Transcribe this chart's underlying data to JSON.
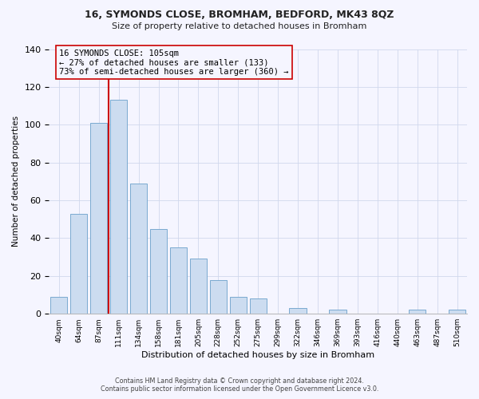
{
  "title": "16, SYMONDS CLOSE, BROMHAM, BEDFORD, MK43 8QZ",
  "subtitle": "Size of property relative to detached houses in Bromham",
  "xlabel": "Distribution of detached houses by size in Bromham",
  "ylabel": "Number of detached properties",
  "bar_labels": [
    "40sqm",
    "64sqm",
    "87sqm",
    "111sqm",
    "134sqm",
    "158sqm",
    "181sqm",
    "205sqm",
    "228sqm",
    "252sqm",
    "275sqm",
    "299sqm",
    "322sqm",
    "346sqm",
    "369sqm",
    "393sqm",
    "416sqm",
    "440sqm",
    "463sqm",
    "487sqm",
    "510sqm"
  ],
  "bar_values": [
    9,
    53,
    101,
    113,
    69,
    45,
    35,
    29,
    18,
    9,
    8,
    0,
    3,
    0,
    2,
    0,
    0,
    0,
    2,
    0,
    2
  ],
  "bar_color": "#ccdcf0",
  "bar_edge_color": "#7aaad0",
  "vline_color": "#cc0000",
  "ylim": [
    0,
    140
  ],
  "annotation_title": "16 SYMONDS CLOSE: 105sqm",
  "annotation_line1": "← 27% of detached houses are smaller (133)",
  "annotation_line2": "73% of semi-detached houses are larger (360) →",
  "annotation_box_edge": "#cc0000",
  "footer_line1": "Contains HM Land Registry data © Crown copyright and database right 2024.",
  "footer_line2": "Contains public sector information licensed under the Open Government Licence v3.0.",
  "background_color": "#f5f5ff"
}
